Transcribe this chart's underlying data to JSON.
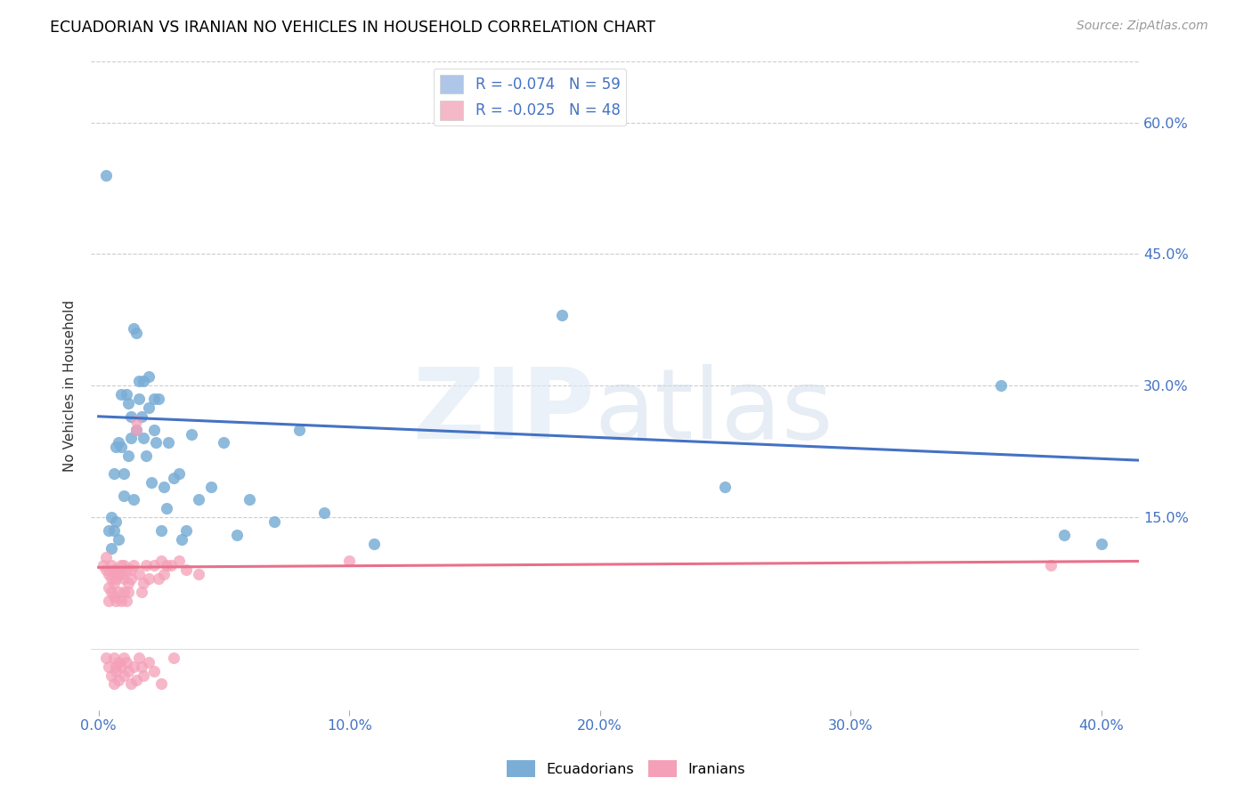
{
  "title": "ECUADORIAN VS IRANIAN NO VEHICLES IN HOUSEHOLD CORRELATION CHART",
  "source": "Source: ZipAtlas.com",
  "ylabel": "No Vehicles in Household",
  "yticks_labels": [
    "15.0%",
    "30.0%",
    "45.0%",
    "60.0%"
  ],
  "ytick_vals": [
    0.15,
    0.3,
    0.45,
    0.6
  ],
  "xtick_vals": [
    0.0,
    0.1,
    0.2,
    0.3,
    0.4
  ],
  "xlim": [
    -0.003,
    0.415
  ],
  "ylim": [
    -0.07,
    0.67
  ],
  "legend_ecuadorian_R": "-0.074",
  "legend_ecuadorian_N": "59",
  "legend_iranian_R": "-0.025",
  "legend_iranian_N": "48",
  "legend_blue_color": "#aec6e8",
  "legend_pink_color": "#f4b8c8",
  "blue_line_color": "#4472c4",
  "pink_line_color": "#e8708a",
  "scatter_blue": "#7aaed6",
  "scatter_pink": "#f4a0b8",
  "blue_line_x": [
    0.0,
    0.415
  ],
  "blue_line_y": [
    0.265,
    0.215
  ],
  "pink_line_x": [
    0.0,
    0.415
  ],
  "pink_line_y": [
    0.093,
    0.1
  ],
  "ecuadorian_x": [
    0.003,
    0.004,
    0.005,
    0.005,
    0.006,
    0.006,
    0.007,
    0.007,
    0.008,
    0.008,
    0.009,
    0.009,
    0.01,
    0.01,
    0.011,
    0.012,
    0.012,
    0.013,
    0.013,
    0.014,
    0.014,
    0.015,
    0.015,
    0.016,
    0.016,
    0.017,
    0.018,
    0.018,
    0.019,
    0.02,
    0.02,
    0.021,
    0.022,
    0.022,
    0.023,
    0.024,
    0.025,
    0.026,
    0.027,
    0.028,
    0.03,
    0.032,
    0.033,
    0.035,
    0.037,
    0.04,
    0.045,
    0.05,
    0.055,
    0.06,
    0.07,
    0.08,
    0.09,
    0.11,
    0.185,
    0.25,
    0.36,
    0.385,
    0.4
  ],
  "ecuadorian_y": [
    0.54,
    0.135,
    0.15,
    0.115,
    0.135,
    0.2,
    0.23,
    0.145,
    0.235,
    0.125,
    0.29,
    0.23,
    0.175,
    0.2,
    0.29,
    0.28,
    0.22,
    0.265,
    0.24,
    0.365,
    0.17,
    0.25,
    0.36,
    0.305,
    0.285,
    0.265,
    0.305,
    0.24,
    0.22,
    0.31,
    0.275,
    0.19,
    0.25,
    0.285,
    0.235,
    0.285,
    0.135,
    0.185,
    0.16,
    0.235,
    0.195,
    0.2,
    0.125,
    0.135,
    0.245,
    0.17,
    0.185,
    0.235,
    0.13,
    0.17,
    0.145,
    0.25,
    0.155,
    0.12,
    0.38,
    0.185,
    0.3,
    0.13,
    0.12
  ],
  "iranian_x": [
    0.002,
    0.003,
    0.003,
    0.004,
    0.004,
    0.004,
    0.005,
    0.005,
    0.005,
    0.006,
    0.006,
    0.006,
    0.007,
    0.007,
    0.007,
    0.008,
    0.008,
    0.009,
    0.009,
    0.009,
    0.01,
    0.01,
    0.01,
    0.011,
    0.011,
    0.012,
    0.012,
    0.013,
    0.013,
    0.014,
    0.015,
    0.015,
    0.016,
    0.017,
    0.018,
    0.019,
    0.02,
    0.022,
    0.024,
    0.025,
    0.026,
    0.027,
    0.029,
    0.032,
    0.035,
    0.04,
    0.1,
    0.38
  ],
  "iranian_y": [
    0.095,
    0.09,
    0.105,
    0.07,
    0.055,
    0.085,
    0.065,
    0.08,
    0.095,
    0.075,
    0.06,
    0.09,
    0.055,
    0.09,
    0.08,
    0.065,
    0.085,
    0.055,
    0.095,
    0.085,
    0.08,
    0.065,
    0.095,
    0.055,
    0.09,
    0.075,
    0.065,
    0.09,
    0.08,
    0.095,
    0.25,
    0.26,
    0.085,
    0.065,
    0.075,
    0.095,
    0.08,
    0.095,
    0.08,
    0.1,
    0.085,
    0.095,
    0.095,
    0.1,
    0.09,
    0.085,
    0.1,
    0.095
  ],
  "iranian_y_below": [
    -0.01,
    -0.02,
    -0.03,
    -0.01,
    -0.04,
    -0.02,
    -0.025,
    -0.015,
    -0.035,
    -0.02,
    -0.01,
    -0.03,
    -0.015,
    -0.025,
    -0.04,
    -0.02,
    -0.035,
    -0.01,
    -0.02,
    -0.03,
    -0.015,
    -0.025,
    -0.04,
    -0.01
  ],
  "iranian_x_below": [
    0.003,
    0.004,
    0.005,
    0.006,
    0.006,
    0.007,
    0.007,
    0.008,
    0.008,
    0.009,
    0.01,
    0.01,
    0.011,
    0.012,
    0.013,
    0.014,
    0.015,
    0.016,
    0.017,
    0.018,
    0.02,
    0.022,
    0.025,
    0.03
  ]
}
